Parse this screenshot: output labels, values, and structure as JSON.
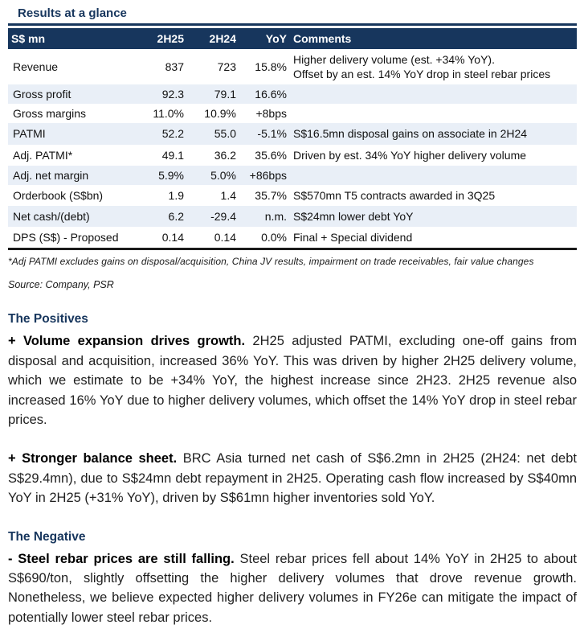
{
  "title": "Results at a glance",
  "table": {
    "columns": [
      "S$ mn",
      "2H25",
      "2H24",
      "YoY",
      "Comments"
    ],
    "rows": [
      {
        "label": "Revenue",
        "h25": "837",
        "h24": "723",
        "yoy": "15.8%",
        "comment": "Higher delivery volume (est. +34% YoY).\nOffset by an est. 14% YoY drop in steel rebar prices"
      },
      {
        "label": "Gross profit",
        "h25": "92.3",
        "h24": "79.1",
        "yoy": "16.6%",
        "comment": ""
      },
      {
        "label": "Gross margins",
        "h25": "11.0%",
        "h24": "10.9%",
        "yoy": "+8bps",
        "comment": ""
      },
      {
        "label": "PATMI",
        "h25": "52.2",
        "h24": "55.0",
        "yoy": "-5.1%",
        "comment": "S$16.5mn disposal gains on associate in 2H24"
      },
      {
        "label": "Adj. PATMI*",
        "h25": "49.1",
        "h24": "36.2",
        "yoy": "35.6%",
        "comment": "Driven by est. 34% YoY higher delivery volume"
      },
      {
        "label": "Adj. net margin",
        "h25": "5.9%",
        "h24": "5.0%",
        "yoy": "+86bps",
        "comment": ""
      },
      {
        "label": "Orderbook (S$bn)",
        "h25": "1.9",
        "h24": "1.4",
        "yoy": "35.7%",
        "comment": "S$570mn T5 contracts awarded in 3Q25"
      },
      {
        "label": "Net cash/(debt)",
        "h25": "6.2",
        "h24": "-29.4",
        "yoy": "n.m.",
        "comment": "S$24mn lower debt YoY"
      },
      {
        "label": "DPS (S$) - Proposed",
        "h25": "0.14",
        "h24": "0.14",
        "yoy": "0.0%",
        "comment": "Final + Special dividend"
      }
    ],
    "footnote": "*Adj PATMI excludes gains on disposal/acquisition, China JV results, impairment on trade receivables, fair value changes",
    "source": "Source: Company, PSR"
  },
  "sections": [
    {
      "heading": "The Positives",
      "paragraphs": [
        {
          "lead": "+ Volume expansion drives growth.",
          "body": "2H25 adjusted PATMI, excluding one-off gains from disposal and acquisition, increased 36% YoY. This was driven by higher 2H25 delivery volume, which we estimate to be +34% YoY, the highest increase since 2H23. 2H25 revenue also increased 16% YoY due to higher delivery volumes, which offset the 14% YoY drop in steel rebar prices."
        },
        {
          "lead": "+ Stronger balance sheet.",
          "body": "BRC Asia turned net cash of S$6.2mn in 2H25 (2H24: net debt S$29.4mn), due to S$24mn debt repayment in 2H25. Operating cash flow increased by S$40mn YoY in 2H25 (+31% YoY), driven by S$61mn higher inventories sold YoY."
        }
      ]
    },
    {
      "heading": "The Negative",
      "paragraphs": [
        {
          "lead": "- Steel rebar prices are still falling.",
          "body": "Steel rebar prices fell about 14% YoY in 2H25 to about S$690/ton, slightly offsetting the higher delivery volumes that drove revenue growth. Nonetheless, we believe expected higher delivery volumes in FY26e can mitigate the impact of potentially lower steel rebar prices."
        }
      ]
    }
  ],
  "colors": {
    "navy": "#17365D",
    "header_text": "#FFFFFF",
    "row_alt": "#E9EFF7",
    "table_bottom_border": "#1A1A1A"
  }
}
